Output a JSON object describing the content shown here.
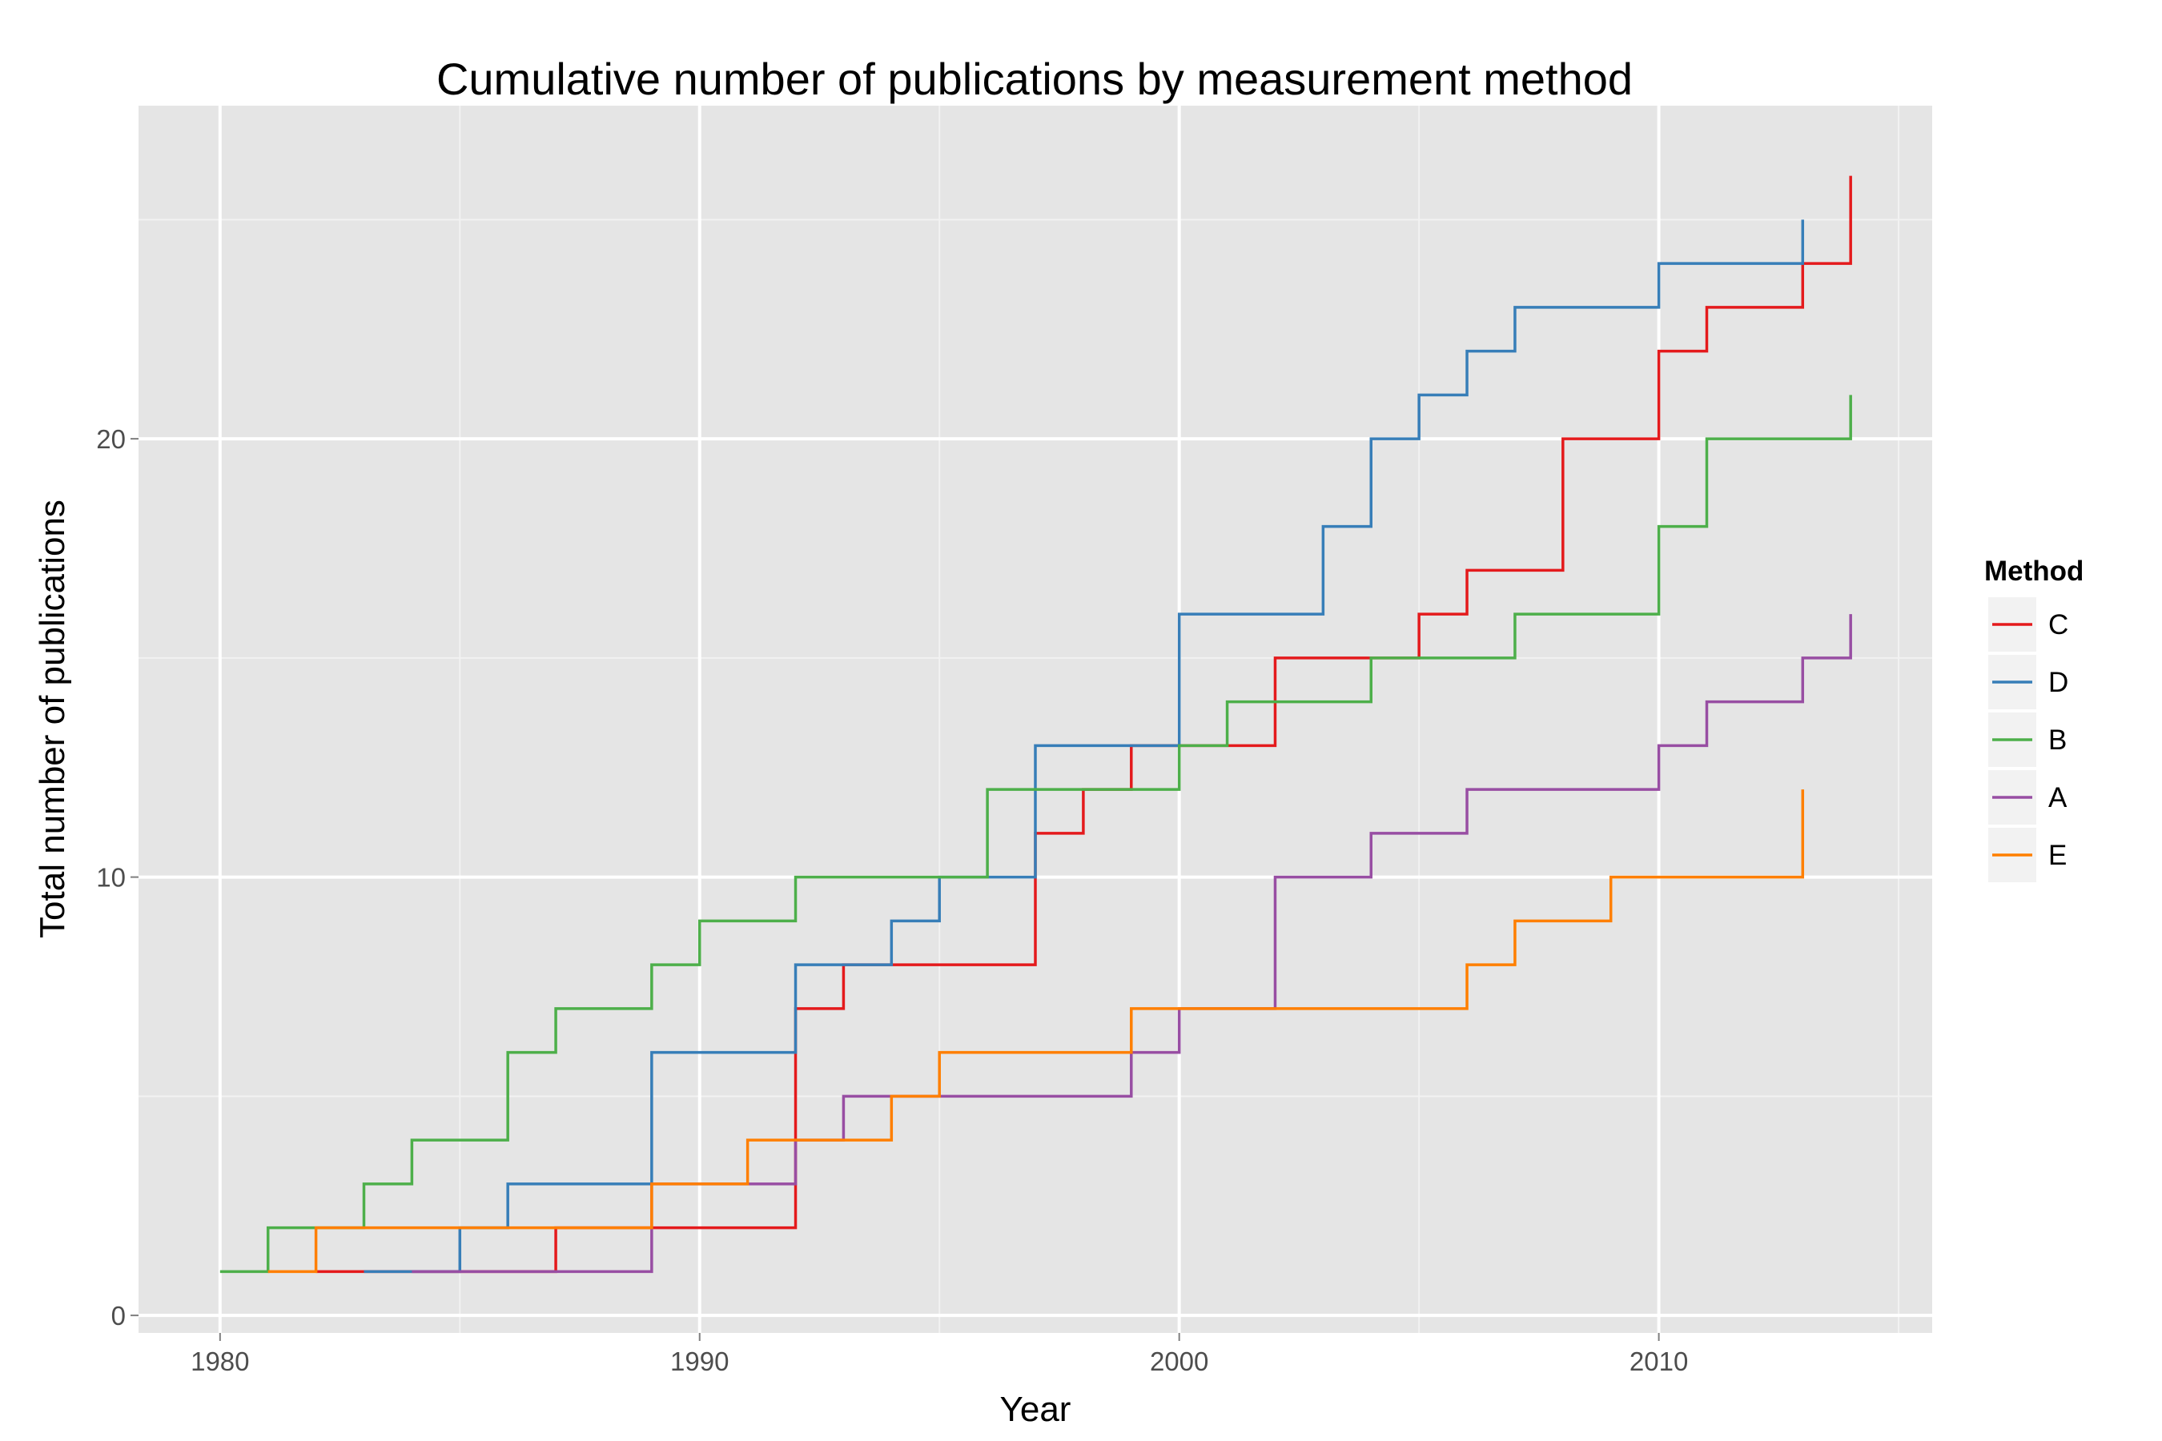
{
  "chart_data": {
    "type": "line",
    "step": true,
    "title": "Cumulative number of publications by measurement method",
    "xlabel": "Year",
    "ylabel": "Total number of publications",
    "xlim": [
      1978.3,
      2015.7
    ],
    "ylim": [
      -0.4,
      27.6
    ],
    "xticks": [
      1980,
      1990,
      2000,
      2010
    ],
    "xtick_labels": [
      "1980",
      "1990",
      "2000",
      "2010"
    ],
    "yticks": [
      0,
      10,
      20
    ],
    "ytick_labels": [
      "0",
      "10",
      "20"
    ],
    "grid": true,
    "legend": {
      "title": "Method",
      "position": "right"
    },
    "series": [
      {
        "name": "C",
        "color": "#e41a1c",
        "points": [
          [
            1982,
            1
          ],
          [
            1983,
            1
          ],
          [
            1984,
            1
          ],
          [
            1985,
            1
          ],
          [
            1986,
            1
          ],
          [
            1987,
            2
          ],
          [
            1988,
            2
          ],
          [
            1989,
            2
          ],
          [
            1990,
            2
          ],
          [
            1991,
            2
          ],
          [
            1992,
            3
          ],
          [
            1992,
            4
          ],
          [
            1992,
            5
          ],
          [
            1992,
            6
          ],
          [
            1992,
            7
          ],
          [
            1993,
            8
          ],
          [
            1994,
            8
          ],
          [
            1995,
            8
          ],
          [
            1996,
            8
          ],
          [
            1997,
            11
          ],
          [
            1998,
            12
          ],
          [
            1999,
            13
          ],
          [
            2000,
            13
          ],
          [
            2001,
            13
          ],
          [
            2002,
            15
          ],
          [
            2003,
            15
          ],
          [
            2004,
            15
          ],
          [
            2005,
            16
          ],
          [
            2006,
            17
          ],
          [
            2007,
            17
          ],
          [
            2008,
            20
          ],
          [
            2009,
            20
          ],
          [
            2010,
            22
          ],
          [
            2011,
            23
          ],
          [
            2012,
            23
          ],
          [
            2013,
            24
          ],
          [
            2014,
            26
          ]
        ]
      },
      {
        "name": "D",
        "color": "#377eb8",
        "points": [
          [
            1983,
            1
          ],
          [
            1984,
            1
          ],
          [
            1985,
            2
          ],
          [
            1986,
            3
          ],
          [
            1987,
            3
          ],
          [
            1988,
            3
          ],
          [
            1989,
            6
          ],
          [
            1990,
            6
          ],
          [
            1991,
            6
          ],
          [
            1992,
            8
          ],
          [
            1993,
            8
          ],
          [
            1994,
            9
          ],
          [
            1995,
            10
          ],
          [
            1996,
            10
          ],
          [
            1997,
            13
          ],
          [
            1998,
            13
          ],
          [
            1999,
            13
          ],
          [
            2000,
            16
          ],
          [
            2001,
            16
          ],
          [
            2002,
            16
          ],
          [
            2003,
            18
          ],
          [
            2004,
            20
          ],
          [
            2005,
            21
          ],
          [
            2006,
            22
          ],
          [
            2007,
            23
          ],
          [
            2008,
            23
          ],
          [
            2009,
            23
          ],
          [
            2010,
            24
          ],
          [
            2011,
            24
          ],
          [
            2012,
            24
          ],
          [
            2013,
            25
          ]
        ]
      },
      {
        "name": "B",
        "color": "#4daf4a",
        "points": [
          [
            1980,
            1
          ],
          [
            1981,
            2
          ],
          [
            1982,
            2
          ],
          [
            1983,
            3
          ],
          [
            1984,
            4
          ],
          [
            1985,
            4
          ],
          [
            1986,
            6
          ],
          [
            1987,
            7
          ],
          [
            1988,
            7
          ],
          [
            1989,
            8
          ],
          [
            1990,
            9
          ],
          [
            1991,
            9
          ],
          [
            1992,
            10
          ],
          [
            1993,
            10
          ],
          [
            1994,
            10
          ],
          [
            1995,
            10
          ],
          [
            1996,
            12
          ],
          [
            1997,
            12
          ],
          [
            1998,
            12
          ],
          [
            1999,
            12
          ],
          [
            2000,
            13
          ],
          [
            2001,
            14
          ],
          [
            2002,
            14
          ],
          [
            2003,
            14
          ],
          [
            2004,
            15
          ],
          [
            2005,
            15
          ],
          [
            2006,
            15
          ],
          [
            2007,
            16
          ],
          [
            2008,
            16
          ],
          [
            2009,
            16
          ],
          [
            2010,
            18
          ],
          [
            2011,
            20
          ],
          [
            2012,
            20
          ],
          [
            2013,
            20
          ],
          [
            2014,
            21
          ]
        ]
      },
      {
        "name": "A",
        "color": "#984ea3",
        "points": [
          [
            1984,
            1
          ],
          [
            1985,
            1
          ],
          [
            1986,
            1
          ],
          [
            1987,
            1
          ],
          [
            1988,
            1
          ],
          [
            1989,
            3
          ],
          [
            1990,
            3
          ],
          [
            1991,
            3
          ],
          [
            1992,
            4
          ],
          [
            1993,
            5
          ],
          [
            1994,
            5
          ],
          [
            1995,
            5
          ],
          [
            1996,
            5
          ],
          [
            1997,
            5
          ],
          [
            1998,
            5
          ],
          [
            1999,
            6
          ],
          [
            2000,
            7
          ],
          [
            2001,
            7
          ],
          [
            2002,
            10
          ],
          [
            2003,
            10
          ],
          [
            2004,
            11
          ],
          [
            2005,
            11
          ],
          [
            2006,
            12
          ],
          [
            2007,
            12
          ],
          [
            2008,
            12
          ],
          [
            2009,
            12
          ],
          [
            2010,
            13
          ],
          [
            2011,
            14
          ],
          [
            2012,
            14
          ],
          [
            2013,
            15
          ],
          [
            2014,
            16
          ]
        ]
      },
      {
        "name": "E",
        "color": "#ff7f00",
        "points": [
          [
            1981,
            1
          ],
          [
            1982,
            2
          ],
          [
            1983,
            2
          ],
          [
            1984,
            2
          ],
          [
            1985,
            2
          ],
          [
            1986,
            2
          ],
          [
            1987,
            2
          ],
          [
            1988,
            2
          ],
          [
            1989,
            3
          ],
          [
            1990,
            3
          ],
          [
            1991,
            4
          ],
          [
            1992,
            4
          ],
          [
            1993,
            4
          ],
          [
            1994,
            5
          ],
          [
            1995,
            6
          ],
          [
            1996,
            6
          ],
          [
            1997,
            6
          ],
          [
            1998,
            6
          ],
          [
            1999,
            7
          ],
          [
            2000,
            7
          ],
          [
            2001,
            7
          ],
          [
            2002,
            7
          ],
          [
            2003,
            7
          ],
          [
            2004,
            7
          ],
          [
            2005,
            7
          ],
          [
            2006,
            8
          ],
          [
            2007,
            9
          ],
          [
            2008,
            9
          ],
          [
            2009,
            10
          ],
          [
            2010,
            10
          ],
          [
            2011,
            10
          ],
          [
            2012,
            10
          ],
          [
            2013,
            12
          ]
        ]
      }
    ]
  }
}
